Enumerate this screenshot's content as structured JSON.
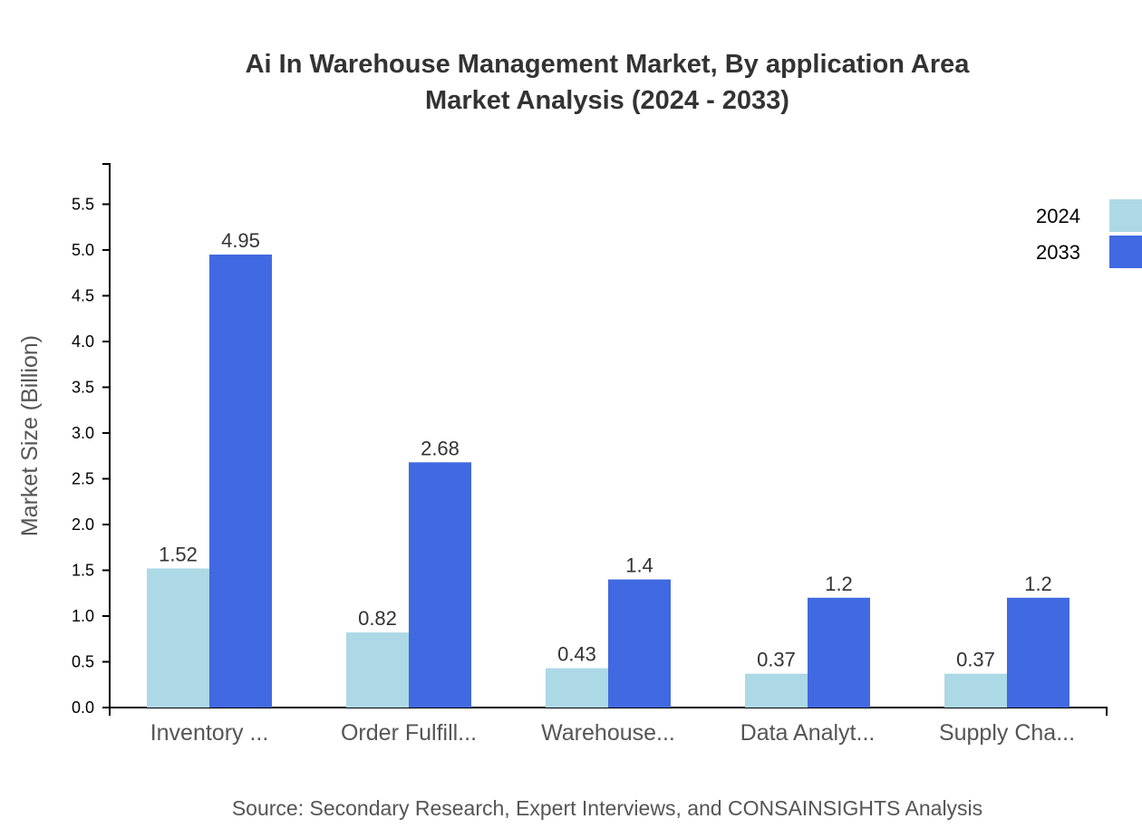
{
  "chart_data": {
    "type": "bar",
    "title": "Ai In Warehouse Management Market, By application Area",
    "subtitle": "Market Analysis (2024 - 2033)",
    "ylabel": "Market Size (Billion)",
    "xlabel": "",
    "categories": [
      "Inventory ...",
      "Order Fulfill...",
      "Warehouse...",
      "Data Analyt...",
      "Supply Cha..."
    ],
    "series": [
      {
        "name": "2024",
        "color": "#add8e6",
        "values": [
          1.52,
          0.82,
          0.43,
          0.37,
          0.37
        ],
        "labels": [
          "1.52",
          "0.82",
          "0.43",
          "0.37",
          "0.37"
        ]
      },
      {
        "name": "2033",
        "color": "#4169e1",
        "values": [
          4.95,
          2.68,
          1.4,
          1.2,
          1.2
        ],
        "labels": [
          "4.95",
          "2.68",
          "1.4",
          "1.2",
          "1.2"
        ]
      }
    ],
    "ylim": [
      0,
      5.94
    ],
    "yticks": [
      "0.0",
      "0.5",
      "1.0",
      "1.5",
      "2.0",
      "2.5",
      "3.0",
      "3.5",
      "4.0",
      "4.5",
      "5.0",
      "5.5"
    ],
    "grid": false,
    "legend": "top-right",
    "source": "Source: Secondary Research, Expert Interviews, and CONSAINSIGHTS Analysis"
  }
}
